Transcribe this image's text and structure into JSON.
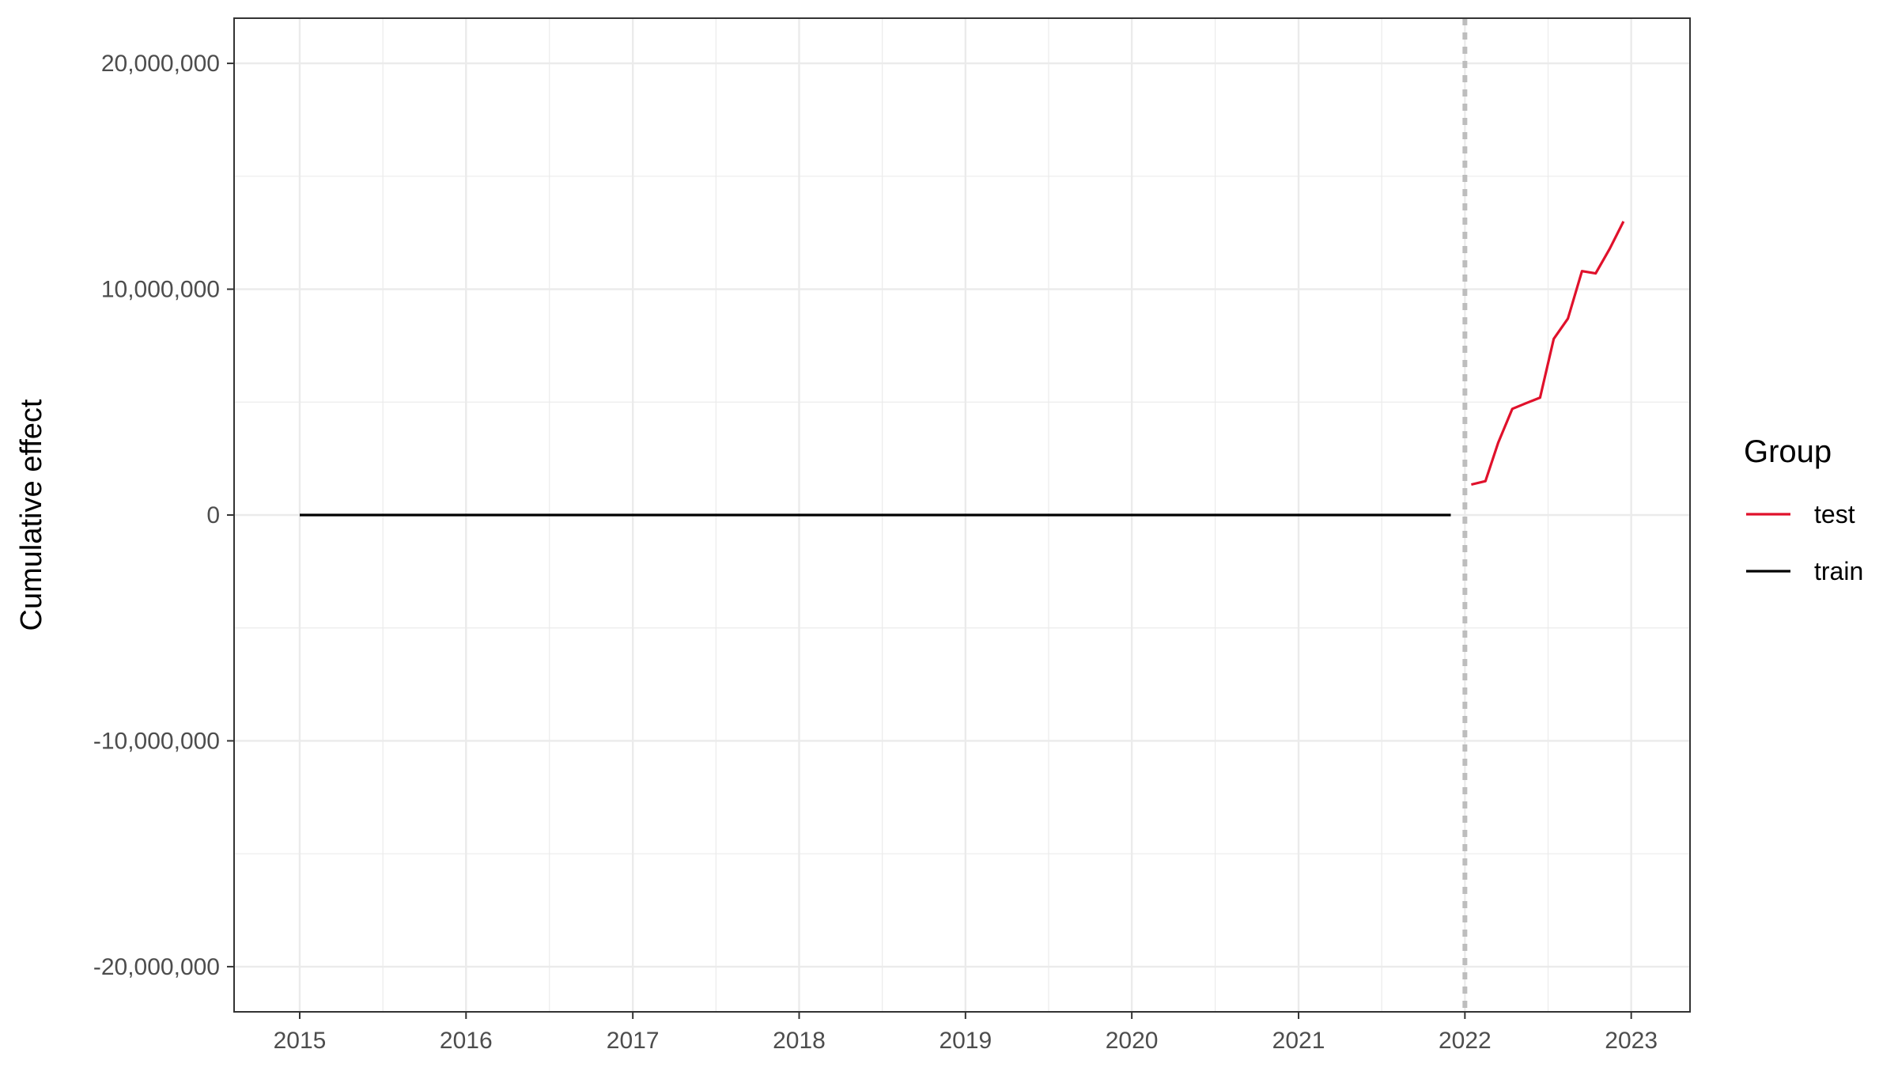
{
  "chart_data": {
    "type": "line",
    "xlabel": "",
    "ylabel": "Cumulative effect",
    "xlim": [
      "2014-08-10",
      "2023-05-10"
    ],
    "ylim": [
      -22000000,
      22000000
    ],
    "x_ticks": [
      {
        "date": "2015-01-01",
        "label": "2015"
      },
      {
        "date": "2016-01-01",
        "label": "2016"
      },
      {
        "date": "2017-01-01",
        "label": "2017"
      },
      {
        "date": "2018-01-01",
        "label": "2018"
      },
      {
        "date": "2019-01-01",
        "label": "2019"
      },
      {
        "date": "2020-01-01",
        "label": "2020"
      },
      {
        "date": "2021-01-01",
        "label": "2021"
      },
      {
        "date": "2022-01-01",
        "label": "2022"
      },
      {
        "date": "2023-01-01",
        "label": "2023"
      }
    ],
    "y_ticks": [
      {
        "value": 20000000,
        "label": "20,000,000"
      },
      {
        "value": 10000000,
        "label": "10,000,000"
      },
      {
        "value": 0,
        "label": "0"
      },
      {
        "value": -10000000,
        "label": "-10,000,000"
      },
      {
        "value": -20000000,
        "label": "-20,000,000"
      }
    ],
    "grid": true,
    "vline": {
      "date": "2022-01-01",
      "style": "dotted",
      "color": "#bdbdbd"
    },
    "legend": {
      "title": "Group",
      "position": "right"
    },
    "series": [
      {
        "name": "test",
        "color": "#e0112b",
        "points": [
          {
            "x": "2022-01-15",
            "y": 1350000
          },
          {
            "x": "2022-02-15",
            "y": 1500000
          },
          {
            "x": "2022-03-15",
            "y": 3200000
          },
          {
            "x": "2022-04-15",
            "y": 4700000
          },
          {
            "x": "2022-05-15",
            "y": 4950000
          },
          {
            "x": "2022-06-15",
            "y": 5200000
          },
          {
            "x": "2022-07-15",
            "y": 7800000
          },
          {
            "x": "2022-08-15",
            "y": 8700000
          },
          {
            "x": "2022-09-15",
            "y": 10800000
          },
          {
            "x": "2022-10-15",
            "y": 10700000
          },
          {
            "x": "2022-11-15",
            "y": 11800000
          },
          {
            "x": "2022-12-15",
            "y": 13000000
          }
        ]
      },
      {
        "name": "train",
        "color": "#000000",
        "points": [
          {
            "x": "2015-01-01",
            "y": 0
          },
          {
            "x": "2016-01-01",
            "y": 0
          },
          {
            "x": "2017-01-01",
            "y": 0
          },
          {
            "x": "2018-01-01",
            "y": 0
          },
          {
            "x": "2019-01-01",
            "y": 0
          },
          {
            "x": "2020-01-01",
            "y": 0
          },
          {
            "x": "2021-01-01",
            "y": 0
          },
          {
            "x": "2021-12-01",
            "y": 0
          }
        ]
      }
    ]
  }
}
